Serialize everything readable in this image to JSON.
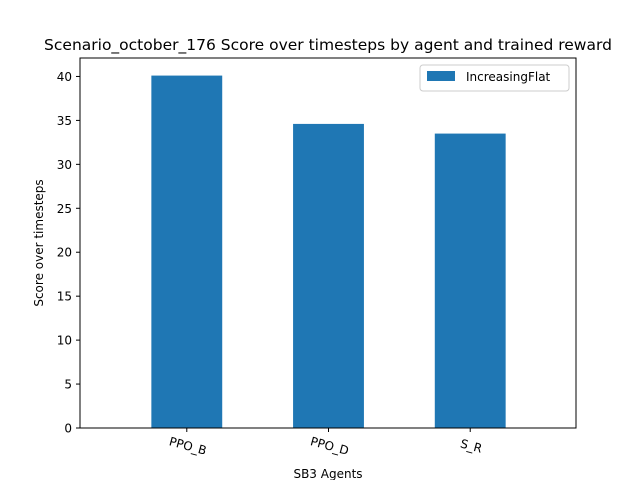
{
  "chart_data": {
    "type": "bar",
    "title": "Scenario_october_176 Score over timesteps by agent and trained reward",
    "xlabel": "SB3 Agents",
    "ylabel": "Score over timesteps",
    "categories": [
      "PPO_B",
      "PPO_D",
      "S_R"
    ],
    "series": [
      {
        "name": "IncreasingFlat",
        "values": [
          40.1,
          34.6,
          33.5
        ],
        "color": "#1f77b4"
      }
    ],
    "ylim": [
      0,
      42.1
    ],
    "yticks": [
      "0",
      "5",
      "10",
      "15",
      "20",
      "25",
      "30",
      "35",
      "40"
    ],
    "grid": false,
    "legend_position": "top-right"
  }
}
